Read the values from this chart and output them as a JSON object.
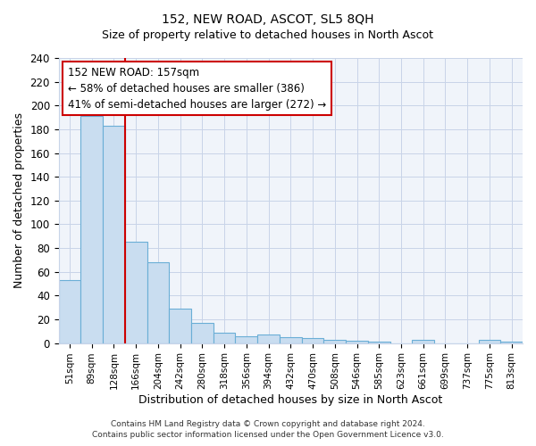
{
  "title": "152, NEW ROAD, ASCOT, SL5 8QH",
  "subtitle": "Size of property relative to detached houses in North Ascot",
  "xlabel": "Distribution of detached houses by size in North Ascot",
  "ylabel": "Number of detached properties",
  "bar_labels": [
    "51sqm",
    "89sqm",
    "128sqm",
    "166sqm",
    "204sqm",
    "242sqm",
    "280sqm",
    "318sqm",
    "356sqm",
    "394sqm",
    "432sqm",
    "470sqm",
    "508sqm",
    "546sqm",
    "585sqm",
    "623sqm",
    "661sqm",
    "699sqm",
    "737sqm",
    "775sqm",
    "813sqm"
  ],
  "bar_values": [
    53,
    191,
    183,
    85,
    68,
    29,
    17,
    9,
    6,
    7,
    5,
    4,
    3,
    2,
    1,
    0,
    3,
    0,
    0,
    3,
    1
  ],
  "bar_color": "#c9ddf0",
  "bar_edge_color": "#6aaed6",
  "vline_color": "#cc0000",
  "ylim": [
    0,
    240
  ],
  "yticks": [
    0,
    20,
    40,
    60,
    80,
    100,
    120,
    140,
    160,
    180,
    200,
    220,
    240
  ],
  "annotation_title": "152 NEW ROAD: 157sqm",
  "annotation_line1": "← 58% of detached houses are smaller (386)",
  "annotation_line2": "41% of semi-detached houses are larger (272) →",
  "annotation_box_color": "#ffffff",
  "annotation_box_edge": "#cc0000",
  "footer1": "Contains HM Land Registry data © Crown copyright and database right 2024.",
  "footer2": "Contains public sector information licensed under the Open Government Licence v3.0."
}
